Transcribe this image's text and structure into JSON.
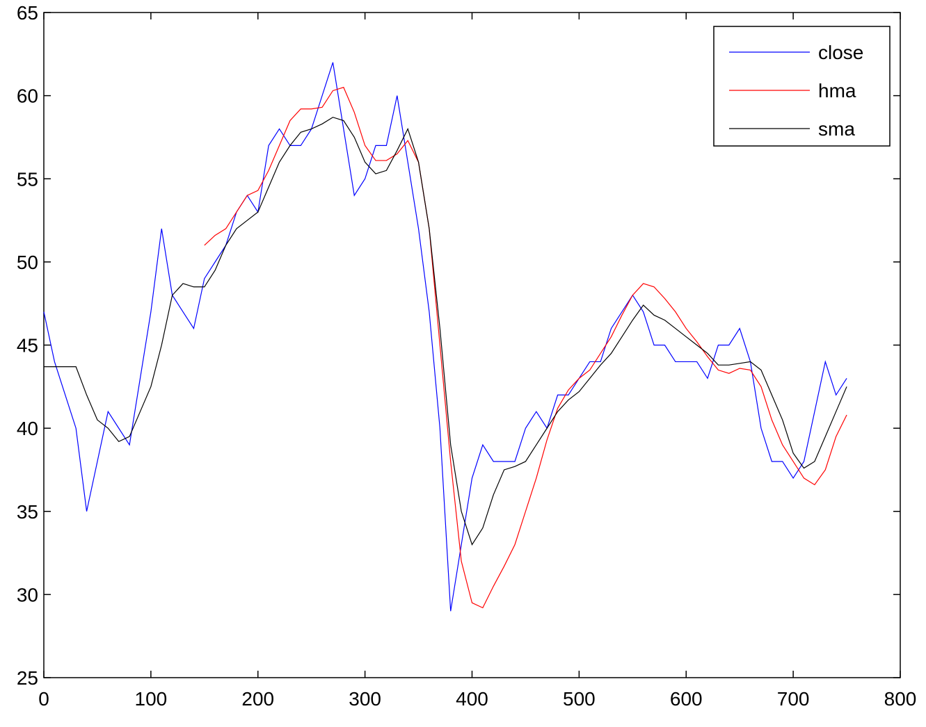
{
  "chart_data": {
    "type": "line",
    "x": [
      0,
      10,
      20,
      30,
      40,
      50,
      60,
      70,
      80,
      90,
      100,
      110,
      120,
      130,
      140,
      150,
      160,
      170,
      180,
      190,
      200,
      210,
      220,
      230,
      240,
      250,
      260,
      270,
      280,
      290,
      300,
      310,
      320,
      330,
      340,
      350,
      360,
      370,
      380,
      390,
      400,
      410,
      420,
      430,
      440,
      450,
      460,
      470,
      480,
      490,
      500,
      510,
      520,
      530,
      540,
      550,
      560,
      570,
      580,
      590,
      600,
      610,
      620,
      630,
      640,
      650,
      660,
      670,
      680,
      690,
      700,
      710,
      720,
      730,
      740,
      750
    ],
    "series": [
      {
        "name": "close",
        "color": "#0000ff",
        "values": [
          47,
          44,
          42,
          40,
          35,
          38,
          41,
          40,
          39,
          43,
          47,
          52,
          48,
          47,
          46,
          49,
          50,
          51,
          53,
          54,
          53,
          57,
          58,
          57,
          57,
          58,
          60,
          62,
          58,
          54,
          55,
          57,
          57,
          60,
          56,
          52,
          47,
          40,
          29,
          33,
          37,
          39,
          38,
          38,
          38,
          40,
          41,
          40,
          42,
          42,
          43,
          44,
          44,
          46,
          47,
          48,
          47,
          45,
          45,
          44,
          44,
          44,
          43,
          45,
          45,
          46,
          44,
          40,
          38,
          38,
          37,
          38,
          41,
          44,
          42,
          43
        ]
      },
      {
        "name": "hma",
        "color": "#ff0000",
        "values": [
          null,
          null,
          null,
          null,
          null,
          null,
          null,
          null,
          null,
          null,
          null,
          null,
          null,
          null,
          null,
          51,
          51.6,
          52,
          53,
          54,
          54.3,
          55.5,
          57,
          58.5,
          59.2,
          59.2,
          59.3,
          60.3,
          60.5,
          59,
          57,
          56.1,
          56.1,
          56.5,
          57.3,
          56,
          52,
          45,
          38,
          32,
          29.5,
          29.2,
          30.5,
          31.7,
          33,
          35,
          37,
          39.3,
          41.2,
          42.3,
          43,
          43.5,
          44.5,
          45.5,
          46.8,
          48,
          48.7,
          48.5,
          47.8,
          47,
          46,
          45.2,
          44.3,
          43.5,
          43.3,
          43.6,
          43.5,
          42.5,
          40.5,
          39,
          38,
          37,
          36.6,
          37.5,
          39.5,
          40.8
        ]
      },
      {
        "name": "sma",
        "color": "#000000",
        "values": [
          43.7,
          43.7,
          43.7,
          43.7,
          42,
          40.5,
          40,
          39.2,
          39.5,
          41,
          42.5,
          45,
          48,
          48.7,
          48.5,
          48.5,
          49.5,
          51,
          52,
          52.5,
          53,
          54.5,
          56,
          57,
          57.8,
          58,
          58.3,
          58.7,
          58.5,
          57.5,
          56,
          55.3,
          55.5,
          56.7,
          58,
          56,
          52,
          46,
          39,
          35,
          33,
          34,
          36,
          37.5,
          37.7,
          38,
          39,
          40,
          41,
          41.7,
          42.2,
          43,
          43.8,
          44.5,
          45.5,
          46.5,
          47.4,
          46.8,
          46.5,
          46,
          45.5,
          45,
          44.5,
          43.8,
          43.8,
          43.9,
          44,
          43.5,
          42,
          40.5,
          38.5,
          37.6,
          38,
          39.5,
          41,
          42.5
        ]
      }
    ],
    "xlim": [
      0,
      800
    ],
    "xticks": [
      0,
      100,
      200,
      300,
      400,
      500,
      600,
      700,
      800
    ],
    "ylim": [
      25,
      65
    ],
    "yticks": [
      25,
      30,
      35,
      40,
      45,
      50,
      55,
      60,
      65
    ],
    "legend": "upper-right"
  }
}
